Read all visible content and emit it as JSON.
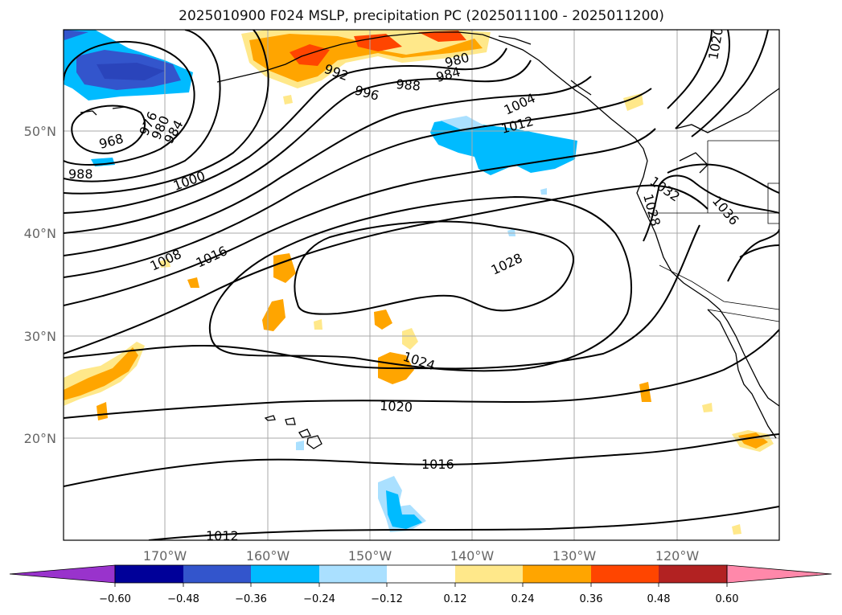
{
  "title": "2025010900 F024 MSLP, precipitation PC (2025011100 - 2025011200)",
  "lon_ticks": [
    "170°W",
    "160°W",
    "150°W",
    "140°W",
    "130°W",
    "120°W"
  ],
  "lat_ticks": [
    "50°N",
    "40°N",
    "30°N",
    "20°N"
  ],
  "contour_labels": [
    "968",
    "976",
    "980",
    "984",
    "988",
    "992",
    "996",
    "980",
    "984",
    "988",
    "1000",
    "1004",
    "1008",
    "1012",
    "1016",
    "1016",
    "1020",
    "1024",
    "1028",
    "1028",
    "1032",
    "1036",
    "1020",
    "1012"
  ],
  "colorbar": {
    "colors": [
      "#9933cc",
      "#000099",
      "#3355cc",
      "#00bbff",
      "#aae0ff",
      "#ffffff",
      "#ffe88a",
      "#ffa500",
      "#ff4500",
      "#b22222",
      "#ff88aa"
    ],
    "ticks": [
      "−0.60",
      "−0.48",
      "−0.36",
      "−0.24",
      "−0.12",
      "0.12",
      "0.24",
      "0.36",
      "0.48",
      "0.60"
    ]
  }
}
